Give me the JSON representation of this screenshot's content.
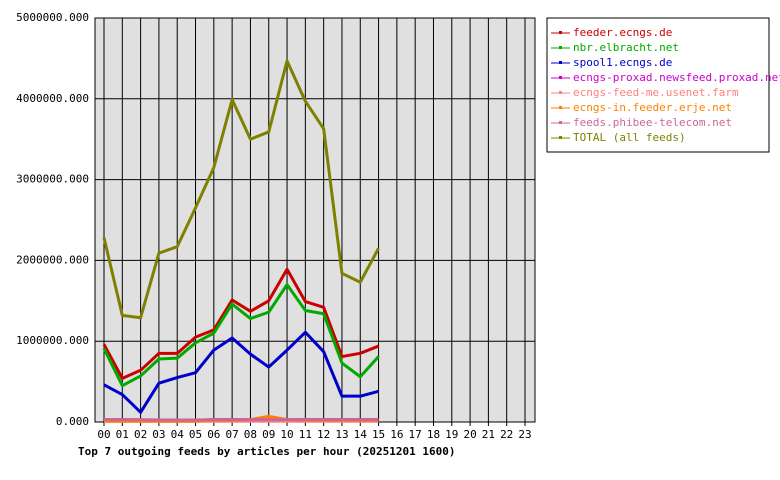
{
  "chart_data": {
    "type": "line",
    "title": "Top 7 outgoing feeds by articles per hour (20251201 1600)",
    "categories": [
      "00",
      "01",
      "02",
      "03",
      "04",
      "05",
      "06",
      "07",
      "08",
      "09",
      "10",
      "11",
      "12",
      "13",
      "14",
      "15",
      "16",
      "17",
      "18",
      "19",
      "20",
      "21",
      "22",
      "23"
    ],
    "ylim": [
      0,
      5000000
    ],
    "yticks": [
      {
        "value": 0,
        "label": "0.000"
      },
      {
        "value": 1000000,
        "label": "1000000.000"
      },
      {
        "value": 2000000,
        "label": "2000000.000"
      },
      {
        "value": 3000000,
        "label": "3000000.000"
      },
      {
        "value": 4000000,
        "label": "4000000.000"
      },
      {
        "value": 5000000,
        "label": "5000000.000"
      }
    ],
    "grid": true,
    "legend": "right",
    "series": [
      {
        "name": "feeder.ecngs.de",
        "color": "#cc0000",
        "values": [
          960000,
          540000,
          640000,
          850000,
          850000,
          1050000,
          1140000,
          1510000,
          1370000,
          1500000,
          1890000,
          1490000,
          1420000,
          810000,
          850000,
          940000,
          null,
          null,
          null,
          null,
          null,
          null,
          null,
          null
        ]
      },
      {
        "name": "nbr.elbracht.net",
        "color": "#00aa00",
        "values": [
          910000,
          450000,
          570000,
          780000,
          790000,
          980000,
          1100000,
          1460000,
          1280000,
          1360000,
          1700000,
          1380000,
          1340000,
          730000,
          560000,
          810000,
          null,
          null,
          null,
          null,
          null,
          null,
          null,
          null
        ]
      },
      {
        "name": "spool1.ecngs.de",
        "color": "#0000cc",
        "values": [
          460000,
          340000,
          120000,
          480000,
          550000,
          610000,
          890000,
          1040000,
          840000,
          680000,
          890000,
          1110000,
          870000,
          320000,
          320000,
          380000,
          null,
          null,
          null,
          null,
          null,
          null,
          null,
          null
        ]
      },
      {
        "name": "ecngs-proxad.newsfeed.proxad.net",
        "color": "#cc00cc",
        "values": [
          30000,
          30000,
          25000,
          20000,
          20000,
          20000,
          30000,
          30000,
          30000,
          30000,
          30000,
          30000,
          30000,
          30000,
          30000,
          30000,
          null,
          null,
          null,
          null,
          null,
          null,
          null,
          null
        ]
      },
      {
        "name": "ecngs-feed-me.usenet.farm",
        "color": "#ff8080",
        "values": [
          10000,
          10000,
          10000,
          10000,
          10000,
          10000,
          10000,
          10000,
          10000,
          10000,
          10000,
          10000,
          10000,
          10000,
          10000,
          10000,
          null,
          null,
          null,
          null,
          null,
          null,
          null,
          null
        ]
      },
      {
        "name": "ecngs-in.feeder.erje.net",
        "color": "#ff8000",
        "values": [
          10000,
          10000,
          10000,
          10000,
          10000,
          10000,
          20000,
          20000,
          30000,
          70000,
          30000,
          20000,
          20000,
          20000,
          20000,
          20000,
          null,
          null,
          null,
          null,
          null,
          null,
          null,
          null
        ]
      },
      {
        "name": "feeds.phibee-telecom.net",
        "color": "#cc6699",
        "values": [
          30000,
          30000,
          30000,
          25000,
          25000,
          25000,
          30000,
          30000,
          30000,
          30000,
          30000,
          30000,
          30000,
          30000,
          30000,
          30000,
          null,
          null,
          null,
          null,
          null,
          null,
          null,
          null
        ]
      },
      {
        "name": "TOTAL (all feeds)",
        "color": "#808000",
        "values": [
          2280000,
          1320000,
          1290000,
          2090000,
          2170000,
          2650000,
          3150000,
          3990000,
          3500000,
          3590000,
          4470000,
          3970000,
          3630000,
          1840000,
          1730000,
          2150000,
          null,
          null,
          null,
          null,
          null,
          null,
          null,
          null
        ]
      }
    ]
  }
}
